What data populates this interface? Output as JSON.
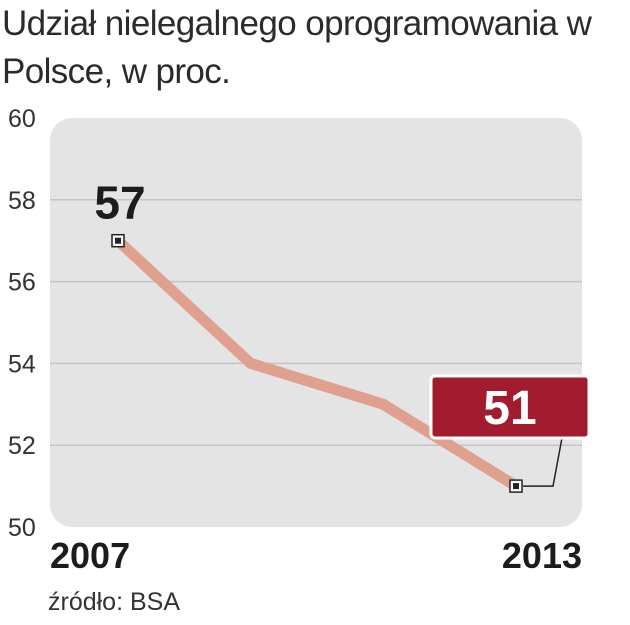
{
  "chart_data": {
    "type": "line",
    "title": "Udział nielegalnego oprogramowania w Polsce, w proc.",
    "x_start_label": "2007",
    "x_end_label": "2013",
    "values": [
      57,
      54,
      53,
      51
    ],
    "ylim": [
      50,
      60
    ],
    "yticks": [
      "60",
      "58",
      "56",
      "54",
      "52",
      "50"
    ],
    "grid": true,
    "callouts": {
      "first": "57",
      "last": "51"
    },
    "source": "źródło: BSA"
  },
  "colors": {
    "plot_background": "#e4e4e4",
    "grid": "#c4c4c4",
    "line": "#e0a090",
    "highlight_box": "#a01c2e",
    "text": "#222222"
  }
}
